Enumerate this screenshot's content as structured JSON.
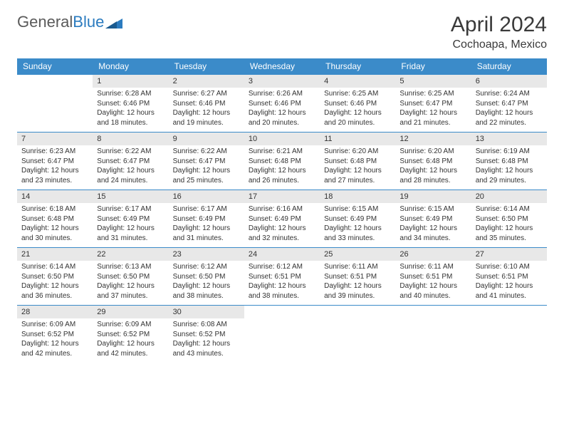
{
  "brand": {
    "name_gray": "General",
    "name_blue": "Blue",
    "icon_color": "#2b7bbf"
  },
  "header": {
    "title": "April 2024",
    "location": "Cochoapa, Mexico"
  },
  "colors": {
    "header_bg": "#3b8bc9",
    "daynum_bg": "#e8e8e8",
    "border": "#3b8bc9",
    "text": "#333333"
  },
  "weekdays": [
    "Sunday",
    "Monday",
    "Tuesday",
    "Wednesday",
    "Thursday",
    "Friday",
    "Saturday"
  ],
  "weeks": [
    [
      {
        "empty": true
      },
      {
        "num": "1",
        "sunrise": "6:28 AM",
        "sunset": "6:46 PM",
        "daylight": "12 hours and 18 minutes."
      },
      {
        "num": "2",
        "sunrise": "6:27 AM",
        "sunset": "6:46 PM",
        "daylight": "12 hours and 19 minutes."
      },
      {
        "num": "3",
        "sunrise": "6:26 AM",
        "sunset": "6:46 PM",
        "daylight": "12 hours and 20 minutes."
      },
      {
        "num": "4",
        "sunrise": "6:25 AM",
        "sunset": "6:46 PM",
        "daylight": "12 hours and 20 minutes."
      },
      {
        "num": "5",
        "sunrise": "6:25 AM",
        "sunset": "6:47 PM",
        "daylight": "12 hours and 21 minutes."
      },
      {
        "num": "6",
        "sunrise": "6:24 AM",
        "sunset": "6:47 PM",
        "daylight": "12 hours and 22 minutes."
      }
    ],
    [
      {
        "num": "7",
        "sunrise": "6:23 AM",
        "sunset": "6:47 PM",
        "daylight": "12 hours and 23 minutes."
      },
      {
        "num": "8",
        "sunrise": "6:22 AM",
        "sunset": "6:47 PM",
        "daylight": "12 hours and 24 minutes."
      },
      {
        "num": "9",
        "sunrise": "6:22 AM",
        "sunset": "6:47 PM",
        "daylight": "12 hours and 25 minutes."
      },
      {
        "num": "10",
        "sunrise": "6:21 AM",
        "sunset": "6:48 PM",
        "daylight": "12 hours and 26 minutes."
      },
      {
        "num": "11",
        "sunrise": "6:20 AM",
        "sunset": "6:48 PM",
        "daylight": "12 hours and 27 minutes."
      },
      {
        "num": "12",
        "sunrise": "6:20 AM",
        "sunset": "6:48 PM",
        "daylight": "12 hours and 28 minutes."
      },
      {
        "num": "13",
        "sunrise": "6:19 AM",
        "sunset": "6:48 PM",
        "daylight": "12 hours and 29 minutes."
      }
    ],
    [
      {
        "num": "14",
        "sunrise": "6:18 AM",
        "sunset": "6:48 PM",
        "daylight": "12 hours and 30 minutes."
      },
      {
        "num": "15",
        "sunrise": "6:17 AM",
        "sunset": "6:49 PM",
        "daylight": "12 hours and 31 minutes."
      },
      {
        "num": "16",
        "sunrise": "6:17 AM",
        "sunset": "6:49 PM",
        "daylight": "12 hours and 31 minutes."
      },
      {
        "num": "17",
        "sunrise": "6:16 AM",
        "sunset": "6:49 PM",
        "daylight": "12 hours and 32 minutes."
      },
      {
        "num": "18",
        "sunrise": "6:15 AM",
        "sunset": "6:49 PM",
        "daylight": "12 hours and 33 minutes."
      },
      {
        "num": "19",
        "sunrise": "6:15 AM",
        "sunset": "6:49 PM",
        "daylight": "12 hours and 34 minutes."
      },
      {
        "num": "20",
        "sunrise": "6:14 AM",
        "sunset": "6:50 PM",
        "daylight": "12 hours and 35 minutes."
      }
    ],
    [
      {
        "num": "21",
        "sunrise": "6:14 AM",
        "sunset": "6:50 PM",
        "daylight": "12 hours and 36 minutes."
      },
      {
        "num": "22",
        "sunrise": "6:13 AM",
        "sunset": "6:50 PM",
        "daylight": "12 hours and 37 minutes."
      },
      {
        "num": "23",
        "sunrise": "6:12 AM",
        "sunset": "6:50 PM",
        "daylight": "12 hours and 38 minutes."
      },
      {
        "num": "24",
        "sunrise": "6:12 AM",
        "sunset": "6:51 PM",
        "daylight": "12 hours and 38 minutes."
      },
      {
        "num": "25",
        "sunrise": "6:11 AM",
        "sunset": "6:51 PM",
        "daylight": "12 hours and 39 minutes."
      },
      {
        "num": "26",
        "sunrise": "6:11 AM",
        "sunset": "6:51 PM",
        "daylight": "12 hours and 40 minutes."
      },
      {
        "num": "27",
        "sunrise": "6:10 AM",
        "sunset": "6:51 PM",
        "daylight": "12 hours and 41 minutes."
      }
    ],
    [
      {
        "num": "28",
        "sunrise": "6:09 AM",
        "sunset": "6:52 PM",
        "daylight": "12 hours and 42 minutes."
      },
      {
        "num": "29",
        "sunrise": "6:09 AM",
        "sunset": "6:52 PM",
        "daylight": "12 hours and 42 minutes."
      },
      {
        "num": "30",
        "sunrise": "6:08 AM",
        "sunset": "6:52 PM",
        "daylight": "12 hours and 43 minutes."
      },
      {
        "empty": true
      },
      {
        "empty": true
      },
      {
        "empty": true
      },
      {
        "empty": true
      }
    ]
  ],
  "labels": {
    "sunrise": "Sunrise:",
    "sunset": "Sunset:",
    "daylight": "Daylight:"
  }
}
